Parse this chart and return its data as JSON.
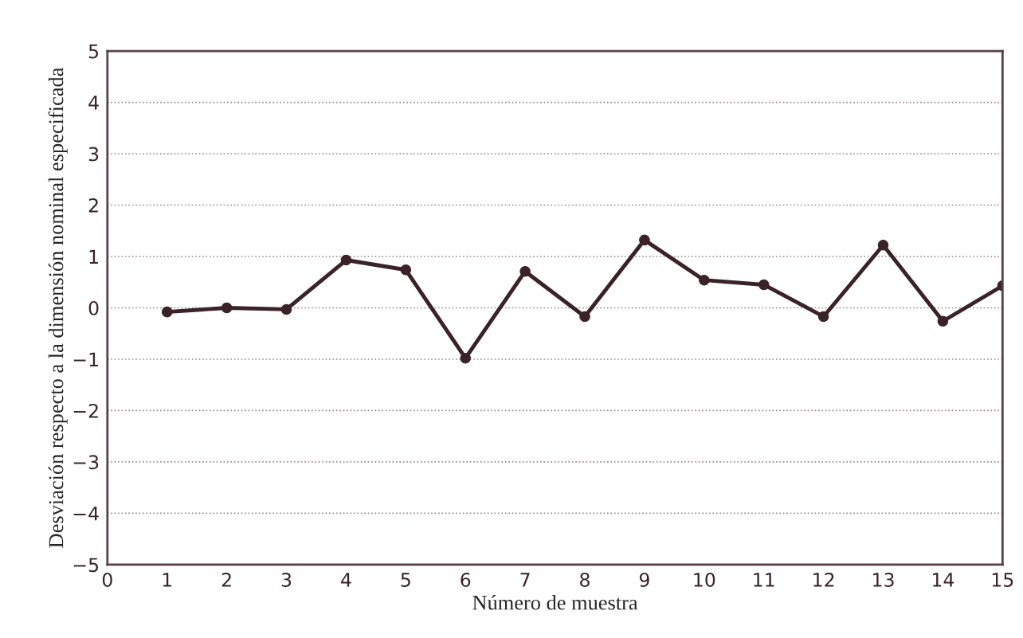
{
  "chart_data": {
    "type": "line",
    "xlabel": "Número de muestra",
    "ylabel": "Desviación respecto a la dimensión nominal especificada",
    "x": [
      1,
      2,
      3,
      4,
      5,
      6,
      7,
      8,
      9,
      10,
      11,
      12,
      13,
      14,
      15
    ],
    "series": [
      {
        "color": "#3a2228",
        "values": [
          -0.08,
          0.0,
          -0.03,
          0.93,
          0.74,
          -0.98,
          0.71,
          -0.17,
          1.32,
          0.54,
          0.45,
          -0.17,
          1.22,
          -0.26,
          0.43
        ]
      }
    ],
    "xlim": [
      0,
      15
    ],
    "xticks": [
      0,
      1,
      2,
      3,
      4,
      5,
      6,
      7,
      8,
      9,
      10,
      11,
      12,
      13,
      14,
      15
    ],
    "ylim": [
      -5,
      5
    ],
    "yticks": [
      -5,
      -4,
      -3,
      -2,
      -1,
      0,
      1,
      2,
      3,
      4,
      5
    ],
    "grid": "y",
    "marker": "circle",
    "line_style": "solid",
    "legend": false
  }
}
